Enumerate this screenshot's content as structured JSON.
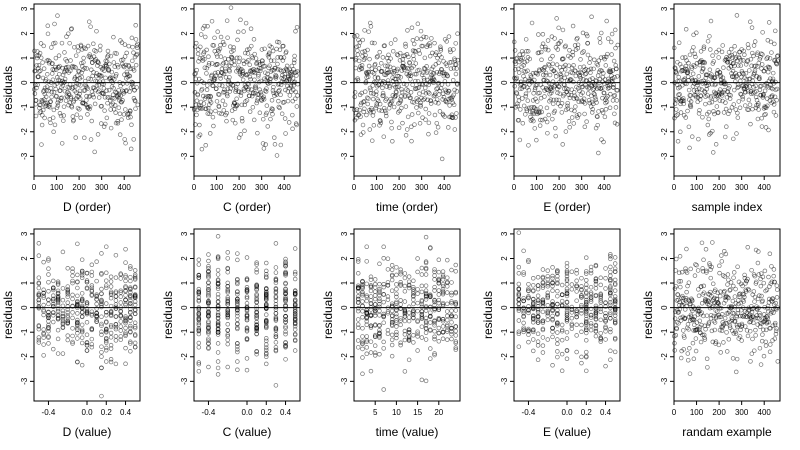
{
  "figure": {
    "ylabel": "residuals",
    "point_color": "#000000",
    "point_opacity": 0.55
  },
  "chart_data": [
    {
      "type": "scatter",
      "xlabel": "D (order)",
      "ylabel": "residuals",
      "xlim": [
        0,
        470
      ],
      "ylim": [
        -3.8,
        3.2
      ],
      "xticks": [
        0,
        100,
        200,
        300,
        400
      ],
      "xtick_labels": [
        "0",
        "100",
        "200",
        "300",
        "400"
      ],
      "yticks": [
        -3,
        -2,
        -1,
        0,
        1,
        2,
        3
      ],
      "ytick_labels": [
        "-3",
        "-2",
        "-1",
        "0",
        "1",
        "2",
        "3"
      ],
      "hline": 0,
      "x_kind": "index",
      "n": 460,
      "seed": 11
    },
    {
      "type": "scatter",
      "xlabel": "C (order)",
      "ylabel": "residuals",
      "xlim": [
        0,
        470
      ],
      "ylim": [
        -3.8,
        3.2
      ],
      "xticks": [
        0,
        100,
        200,
        300,
        400
      ],
      "xtick_labels": [
        "0",
        "100",
        "200",
        "300",
        "400"
      ],
      "yticks": [
        -3,
        -2,
        -1,
        0,
        1,
        2,
        3
      ],
      "ytick_labels": [
        "-3",
        "-2",
        "-1",
        "0",
        "1",
        "2",
        "3"
      ],
      "hline": 0,
      "x_kind": "index",
      "n": 460,
      "seed": 23
    },
    {
      "type": "scatter",
      "xlabel": "time (order)",
      "ylabel": "residuals",
      "xlim": [
        0,
        470
      ],
      "ylim": [
        -3.8,
        3.2
      ],
      "xticks": [
        0,
        100,
        200,
        300,
        400
      ],
      "xtick_labels": [
        "0",
        "100",
        "200",
        "300",
        "400"
      ],
      "yticks": [
        -3,
        -2,
        -1,
        0,
        1,
        2,
        3
      ],
      "ytick_labels": [
        "-3",
        "-2",
        "-1",
        "0",
        "1",
        "2",
        "3"
      ],
      "hline": 0,
      "x_kind": "index",
      "n": 460,
      "seed": 37
    },
    {
      "type": "scatter",
      "xlabel": "E (order)",
      "ylabel": "residuals",
      "xlim": [
        0,
        470
      ],
      "ylim": [
        -3.8,
        3.2
      ],
      "xticks": [
        0,
        100,
        200,
        300,
        400
      ],
      "xtick_labels": [
        "0",
        "100",
        "200",
        "300",
        "400"
      ],
      "yticks": [
        -3,
        -2,
        -1,
        0,
        1,
        2,
        3
      ],
      "ytick_labels": [
        "-3",
        "-2",
        "-1",
        "0",
        "1",
        "2",
        "3"
      ],
      "hline": 0,
      "x_kind": "index",
      "n": 460,
      "seed": 41
    },
    {
      "type": "scatter",
      "xlabel": "sample index",
      "ylabel": "residuals",
      "xlim": [
        0,
        470
      ],
      "ylim": [
        -3.8,
        3.2
      ],
      "xticks": [
        0,
        100,
        200,
        300,
        400
      ],
      "xtick_labels": [
        "0",
        "100",
        "200",
        "300",
        "400"
      ],
      "yticks": [
        -3,
        -2,
        -1,
        0,
        1,
        2,
        3
      ],
      "ytick_labels": [
        "-3",
        "-2",
        "-1",
        "0",
        "1",
        "2",
        "3"
      ],
      "hline": 0,
      "x_kind": "index",
      "n": 460,
      "seed": 53
    },
    {
      "type": "scatter",
      "xlabel": "D (value)",
      "ylabel": "residuals",
      "xlim": [
        -0.55,
        0.55
      ],
      "ylim": [
        -3.8,
        3.2
      ],
      "xticks": [
        -0.4,
        0,
        0.2,
        0.4
      ],
      "xtick_labels": [
        "-0.4",
        "0.0",
        "0.2",
        "0.4"
      ],
      "yticks": [
        -3,
        -2,
        -1,
        0,
        1,
        2,
        3
      ],
      "ytick_labels": [
        "-3",
        "-2",
        "-1",
        "0",
        "1",
        "2",
        "3"
      ],
      "hline": 0,
      "x_kind": "discrete",
      "x_levels": [
        -0.5,
        -0.45,
        -0.4,
        -0.35,
        -0.3,
        -0.25,
        -0.2,
        -0.15,
        -0.1,
        -0.05,
        0,
        0.05,
        0.1,
        0.15,
        0.2,
        0.25,
        0.3,
        0.35,
        0.4,
        0.45,
        0.5
      ],
      "n": 460,
      "seed": 61
    },
    {
      "type": "scatter",
      "xlabel": "C (value)",
      "ylabel": "residuals",
      "xlim": [
        -0.55,
        0.55
      ],
      "ylim": [
        -3.8,
        3.2
      ],
      "xticks": [
        -0.4,
        0,
        0.2,
        0.4
      ],
      "xtick_labels": [
        "-0.4",
        "0.0",
        "0.2",
        "0.4"
      ],
      "yticks": [
        -3,
        -2,
        -1,
        0,
        1,
        2,
        3
      ],
      "ytick_labels": [
        "-3",
        "-2",
        "-1",
        "0",
        "1",
        "2",
        "3"
      ],
      "hline": 0,
      "x_kind": "discrete",
      "x_levels": [
        -0.5,
        -0.4,
        -0.3,
        -0.2,
        -0.1,
        0,
        0.1,
        0.2,
        0.3,
        0.4,
        0.5
      ],
      "n": 460,
      "seed": 71
    },
    {
      "type": "scatter",
      "xlabel": "time (value)",
      "ylabel": "residuals",
      "xlim": [
        0,
        25
      ],
      "ylim": [
        -3.8,
        3.2
      ],
      "xticks": [
        5,
        10,
        15,
        20
      ],
      "xtick_labels": [
        "5",
        "10",
        "15",
        "20"
      ],
      "yticks": [
        -3,
        -2,
        -1,
        0,
        1,
        2,
        3
      ],
      "ytick_labels": [
        "-3",
        "-2",
        "-1",
        "0",
        "1",
        "2",
        "3"
      ],
      "hline": 0,
      "x_kind": "discrete",
      "x_levels": [
        1,
        2,
        3,
        4,
        5,
        6,
        7,
        8,
        9,
        10,
        11,
        12,
        13,
        14,
        15,
        16,
        17,
        18,
        19,
        20,
        21,
        22,
        23,
        24
      ],
      "n": 460,
      "seed": 83
    },
    {
      "type": "scatter",
      "xlabel": "E (value)",
      "ylabel": "residuals",
      "xlim": [
        -0.55,
        0.55
      ],
      "ylim": [
        -3.8,
        3.2
      ],
      "xticks": [
        -0.4,
        0,
        0.2,
        0.4
      ],
      "xtick_labels": [
        "-0.4",
        "0.0",
        "0.2",
        "0.4"
      ],
      "yticks": [
        -3,
        -2,
        -1,
        0,
        1,
        2,
        3
      ],
      "ytick_labels": [
        "-3",
        "-2",
        "-1",
        "0",
        "1",
        "2",
        "3"
      ],
      "hline": 0,
      "x_kind": "discrete",
      "x_levels": [
        -0.5,
        -0.45,
        -0.4,
        -0.35,
        -0.3,
        -0.25,
        -0.2,
        -0.15,
        -0.1,
        -0.05,
        0,
        0.05,
        0.1,
        0.15,
        0.2,
        0.25,
        0.3,
        0.35,
        0.4,
        0.45,
        0.5
      ],
      "n": 460,
      "seed": 97
    },
    {
      "type": "scatter",
      "xlabel": "randam example",
      "ylabel": "residuals",
      "xlim": [
        0,
        470
      ],
      "ylim": [
        -3.8,
        3.2
      ],
      "xticks": [
        0,
        100,
        200,
        300,
        400
      ],
      "xtick_labels": [
        "0",
        "100",
        "200",
        "300",
        "400"
      ],
      "yticks": [
        -3,
        -2,
        -1,
        0,
        1,
        2,
        3
      ],
      "ytick_labels": [
        "-3",
        "-2",
        "-1",
        "0",
        "1",
        "2",
        "3"
      ],
      "hline": 0,
      "x_kind": "index",
      "n": 460,
      "seed": 103
    }
  ]
}
